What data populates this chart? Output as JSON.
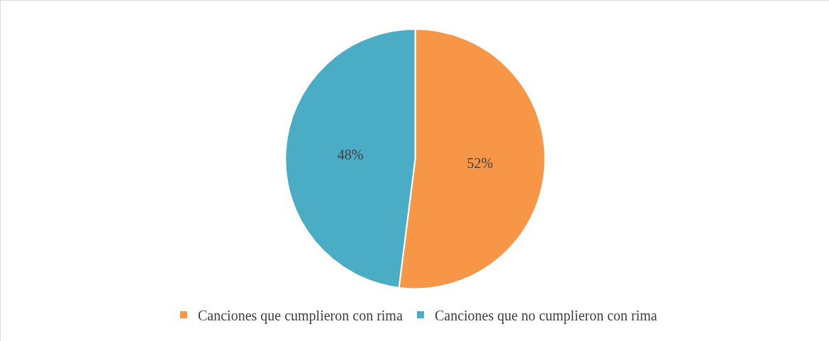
{
  "chart_data": {
    "type": "pie",
    "categories": [
      "Canciones que cumplieron con rima",
      "Canciones que no cumplieron con rima"
    ],
    "values": [
      52,
      48
    ],
    "colors": [
      "#f79646",
      "#4bacc6"
    ],
    "value_labels": [
      "52%",
      "48%"
    ],
    "legend": "bottom"
  }
}
